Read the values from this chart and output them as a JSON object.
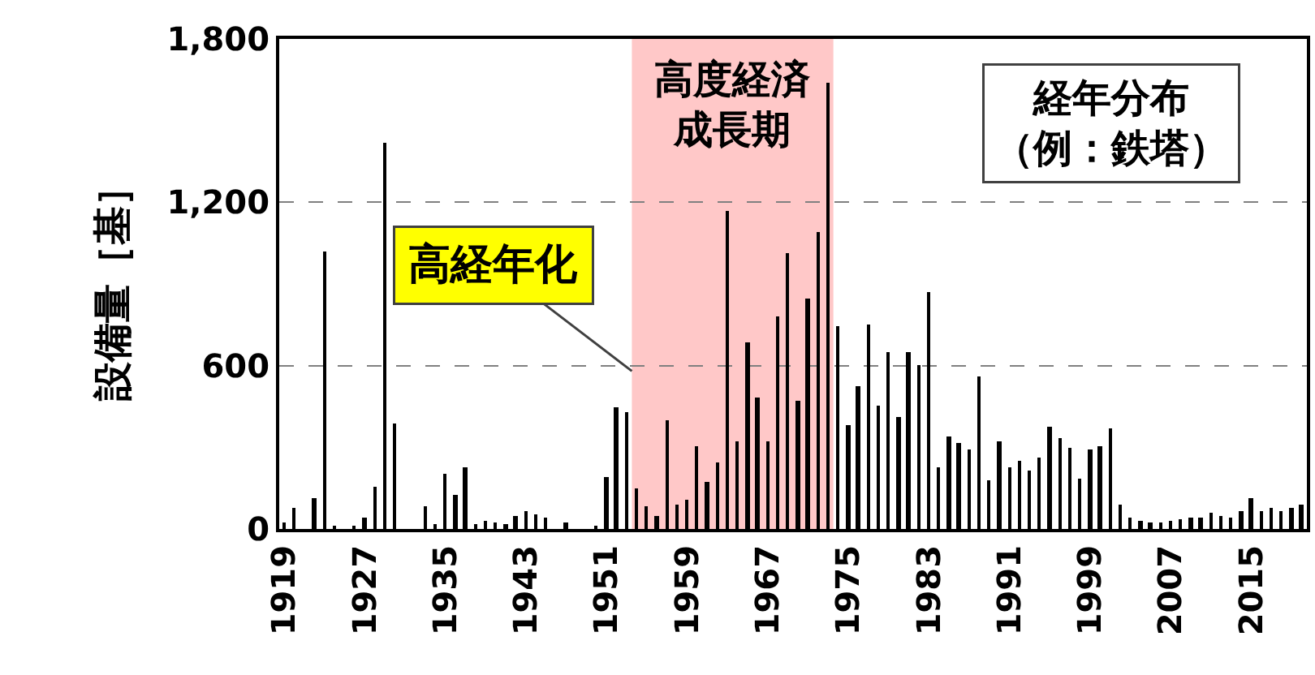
{
  "chart_data": {
    "type": "bar",
    "ylabel": "設備量［基］",
    "x": [
      1919,
      1920,
      1921,
      1922,
      1923,
      1924,
      1925,
      1926,
      1927,
      1928,
      1929,
      1930,
      1931,
      1932,
      1933,
      1934,
      1935,
      1936,
      1937,
      1938,
      1939,
      1940,
      1941,
      1942,
      1943,
      1944,
      1945,
      1946,
      1947,
      1948,
      1949,
      1950,
      1951,
      1952,
      1953,
      1954,
      1955,
      1956,
      1957,
      1958,
      1959,
      1960,
      1961,
      1962,
      1963,
      1964,
      1965,
      1966,
      1967,
      1968,
      1969,
      1970,
      1971,
      1972,
      1973,
      1974,
      1975,
      1976,
      1977,
      1978,
      1979,
      1980,
      1981,
      1982,
      1983,
      1984,
      1985,
      1986,
      1987,
      1988,
      1989,
      1990,
      1991,
      1992,
      1993,
      1994,
      1995,
      1996,
      1997,
      1998,
      1999,
      2000,
      2001,
      2002,
      2003,
      2004,
      2005,
      2006,
      2007,
      2008,
      2009,
      2010,
      2011,
      2012,
      2013,
      2014,
      2015,
      2016,
      2017,
      2018,
      2019,
      2020
    ],
    "values": [
      26,
      76,
      0,
      116,
      1020,
      12,
      0,
      12,
      40,
      156,
      1416,
      390,
      0,
      0,
      84,
      20,
      202,
      124,
      226,
      20,
      32,
      24,
      16,
      50,
      66,
      56,
      40,
      0,
      24,
      0,
      0,
      12,
      192,
      446,
      430,
      152,
      84,
      50,
      398,
      90,
      108,
      304,
      174,
      246,
      1170,
      320,
      686,
      484,
      324,
      778,
      1014,
      468,
      846,
      1088,
      1638,
      746,
      382,
      524,
      750,
      452,
      648,
      414,
      648,
      600,
      868,
      224,
      342,
      316,
      292,
      558,
      180,
      322,
      224,
      252,
      216,
      264,
      378,
      336,
      300,
      184,
      290,
      306,
      372,
      90,
      40,
      30,
      26,
      24,
      30,
      36,
      44,
      40,
      60,
      50,
      40,
      64,
      112,
      66,
      76,
      66,
      80,
      90
    ],
    "color": "#000000",
    "xlim": [
      1918.5,
      2020.5
    ],
    "xticks": [
      1919,
      1927,
      1935,
      1943,
      1951,
      1959,
      1967,
      1975,
      1983,
      1991,
      1999,
      2007,
      2015
    ],
    "ylim": [
      0,
      1800
    ],
    "yticks": [
      0,
      {
        "value": 600,
        "label": "600"
      },
      {
        "value": 1200,
        "label": "1,200"
      },
      {
        "value": 1800,
        "label": "1,800"
      }
    ],
    "grid": "y",
    "bands": [
      {
        "axis": "x",
        "from": 1953.5,
        "to": 1973.5,
        "label": "高度経済成長期",
        "color": "#ffc8c8"
      }
    ],
    "annotations": [
      {
        "text": "高経年化",
        "x": 1953.5,
        "y": 580
      },
      "経年分布（例：鉄塔）"
    ]
  }
}
